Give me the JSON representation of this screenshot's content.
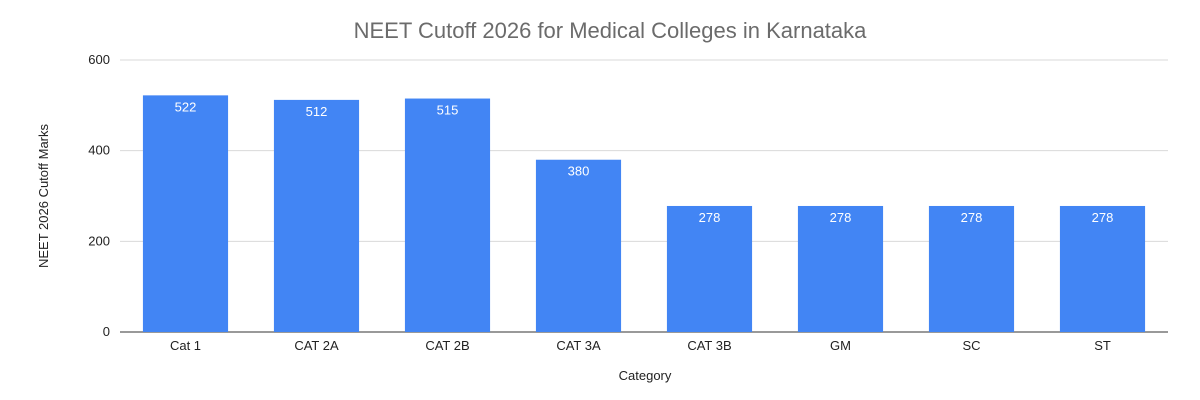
{
  "chart_data": {
    "type": "bar",
    "title": "NEET Cutoff 2026 for Medical Colleges in Karnataka",
    "xlabel": "Category",
    "ylabel": "NEET 2026 Cutoff Marks",
    "categories": [
      "Cat 1",
      "CAT 2A",
      "CAT 2B",
      "CAT 3A",
      "CAT 3B",
      "GM",
      "SC",
      "ST"
    ],
    "values": [
      522,
      512,
      515,
      380,
      278,
      278,
      278,
      278
    ],
    "ylim": [
      0,
      600
    ],
    "yticks": [
      0,
      200,
      400,
      600
    ],
    "bar_color": "#4285f4",
    "grid": true,
    "legend": "none"
  }
}
